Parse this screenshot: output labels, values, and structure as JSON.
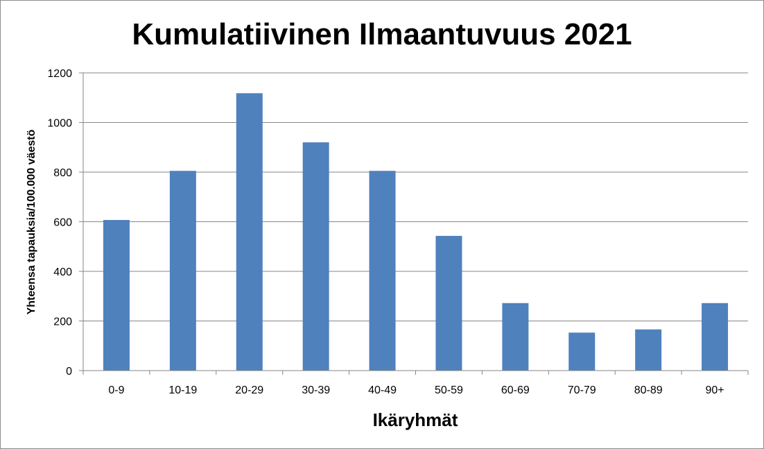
{
  "chart_data": {
    "type": "bar",
    "title": "Kumulatiivinen Ilmaantuvuus 2021",
    "xlabel": "Ikäryhmät",
    "ylabel": "Yhteensa tapauksia/100.000 väestö",
    "categories": [
      "0-9",
      "10-19",
      "20-29",
      "30-39",
      "40-49",
      "50-59",
      "60-69",
      "70-79",
      "80-89",
      "90+"
    ],
    "values": [
      607,
      805,
      1118,
      920,
      805,
      543,
      272,
      153,
      166,
      272
    ],
    "ylim": [
      0,
      1200
    ],
    "yticks": [
      "0",
      "200",
      "400",
      "600",
      "800",
      "1000",
      "1200"
    ],
    "grid": true,
    "legend": "none",
    "bar_color": "#4f81bd",
    "grid_color": "#868686"
  }
}
